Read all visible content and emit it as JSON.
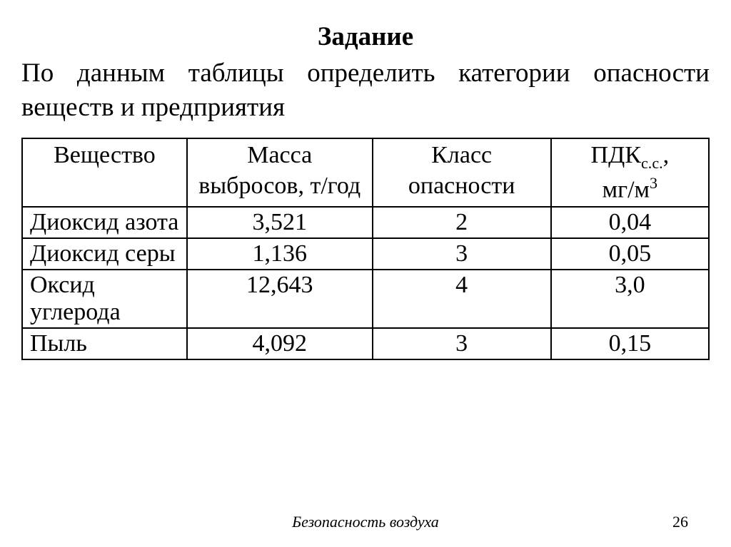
{
  "title": "Задание",
  "intro": "По данным таблицы определить категории опасности веществ и предприятия",
  "table": {
    "columns": [
      "Вещество",
      "Масса выбросов, т/год",
      "Класс опасности",
      "__PDK_HEADER__"
    ],
    "pdk_header_parts": {
      "base": "ПДК",
      "sub": "с.с.",
      "after_sub": ",",
      "unit_prefix": "мг/м",
      "unit_sup": "3"
    },
    "col_align": [
      "left",
      "center",
      "center",
      "center"
    ],
    "rows": [
      [
        "Диоксид азота",
        "3,521",
        "2",
        "0,04"
      ],
      [
        "Диоксид серы",
        "1,136",
        "3",
        "0,05"
      ],
      [
        "Оксид углерода",
        "12,643",
        "4",
        "3,0"
      ],
      [
        "Пыль",
        "4,092",
        "3",
        "0,15"
      ]
    ]
  },
  "footer": "Безопасность воздуха",
  "page_number": "26",
  "colors": {
    "text": "#000000",
    "background": "#ffffff",
    "border": "#000000"
  },
  "fonts": {
    "family": "Times New Roman",
    "title_size_pt": 28,
    "body_size_pt": 28,
    "table_size_pt": 26,
    "footer_size_pt": 16
  }
}
